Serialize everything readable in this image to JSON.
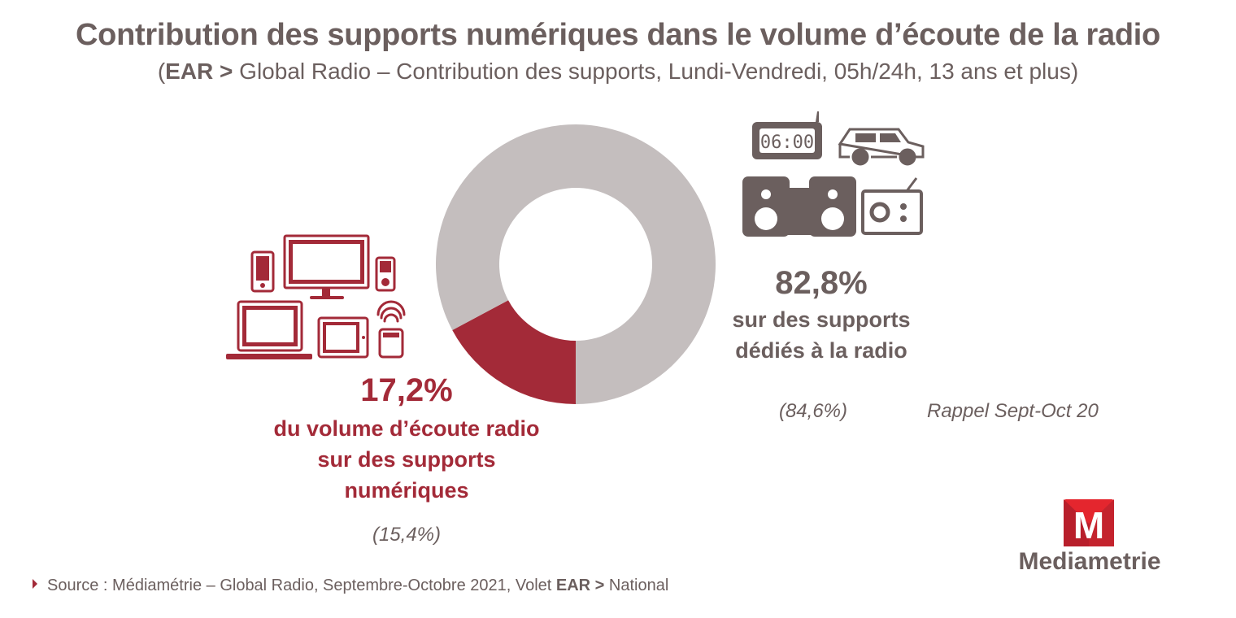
{
  "header": {
    "title": "Contribution des supports numériques dans le volume d’écoute de la radio",
    "subtitle_open": "(",
    "subtitle_bold": "EAR >",
    "subtitle_rest": " Global Radio – Contribution des supports, Lundi-Vendredi, 05h/24h, 13 ans et plus)"
  },
  "chart_data": {
    "type": "pie",
    "donut": true,
    "slices": [
      {
        "label": "du volume d’écoute radio sur des supports numériques",
        "value": 17.2,
        "color": "#a32a38"
      },
      {
        "label": "sur des supports dédiés à la radio",
        "value": 82.8,
        "color": "#c4bebe"
      }
    ]
  },
  "digital": {
    "pct": "17,2%",
    "line1": "du volume d’écoute radio",
    "line2": "sur des supports",
    "line3": "numériques",
    "rappel": "(15,4%)"
  },
  "dedicated": {
    "pct": "82,8%",
    "line1": "sur des supports",
    "line2": "dédiés à la radio",
    "rappel": "(84,6%)",
    "rappel_label": "Rappel Sept-Oct 20"
  },
  "clock_display": "06:00",
  "footer": {
    "source_prefix": "Source : Médiamétrie – Global Radio, Septembre-Octobre 2021, Volet ",
    "source_bold": "EAR >",
    "source_suffix": " National"
  },
  "logo": {
    "letter": "M",
    "name": "Mediametrie"
  },
  "colors": {
    "accent": "#a32a38",
    "gray_text": "#6b5f5e",
    "donut_gray": "#c4bebe",
    "icon_gray": "#6b5f5e"
  }
}
